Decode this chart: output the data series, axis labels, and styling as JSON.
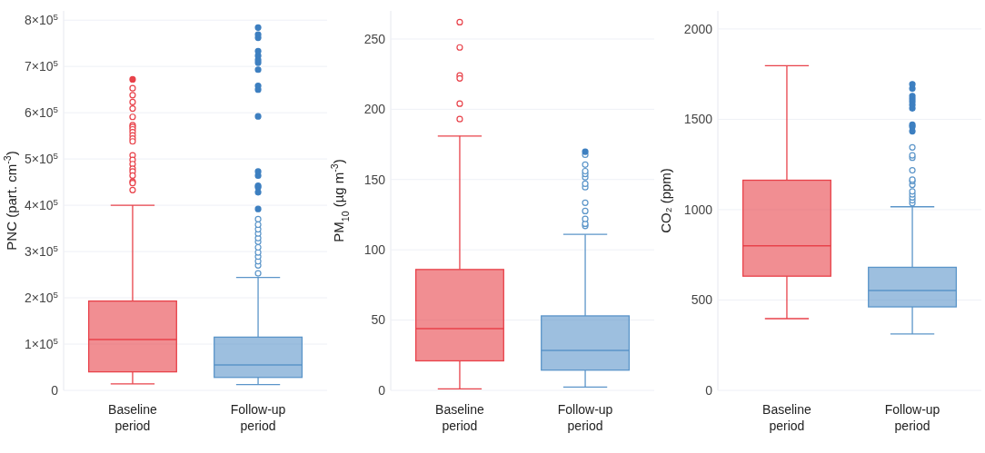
{
  "chart_data": [
    {
      "type": "box",
      "ylabel": "PNC (part. cm$^{-3}$)",
      "categories": [
        "Baseline period",
        "Follow-up period"
      ],
      "colors": [
        "#e8424a",
        "#5b95c9"
      ],
      "grid": "y",
      "marker": "circle",
      "ylim": [
        0,
        820000
      ],
      "yticks": [
        0,
        {
          "value": 100000,
          "label": "1×10$^{5}$"
        },
        {
          "value": 200000,
          "label": "2×10$^{5}$"
        },
        {
          "value": 300000,
          "label": "3×10$^{5}$"
        },
        {
          "value": 400000,
          "label": "4×10$^{5}$"
        },
        {
          "value": 500000,
          "label": "5×10$^{5}$"
        },
        {
          "value": 600000,
          "label": "6×10$^{5}$"
        },
        {
          "value": 700000,
          "label": "7×10$^{5}$"
        },
        {
          "value": 800000,
          "label": "8×10$^{5}$"
        }
      ],
      "boxes": [
        {
          "low": 14000,
          "q1": 40000,
          "median": 110000,
          "q3": 193000,
          "high": 400000,
          "outliers": [
            653000,
            638000,
            623000,
            609000,
            591000,
            573000,
            569000,
            564000,
            558000,
            551000,
            544000,
            538000,
            508000,
            498000,
            489000,
            479000,
            473000,
            464000,
            451000,
            448000,
            433000
          ]
        },
        {
          "low": 12500,
          "q1": 28000,
          "median": 55000,
          "q3": 115000,
          "high": 244000,
          "outliers": [
            253000,
            270000,
            279000,
            289000,
            298000,
            309000,
            321000,
            329000,
            339000,
            348000,
            358000,
            370000
          ]
        }
      ],
      "series": [
        {
          "type": "scatter",
          "color": "#e8424a",
          "x": [
            "Baseline period"
          ],
          "values": [
            672000
          ]
        },
        {
          "type": "scatter",
          "color": "#3d7fc0",
          "x": [
            "Follow-up period",
            "Follow-up period",
            "Follow-up period",
            "Follow-up period",
            "Follow-up period",
            "Follow-up period",
            "Follow-up period",
            "Follow-up period",
            "Follow-up period",
            "Follow-up period",
            "Follow-up period",
            "Follow-up period",
            "Follow-up period",
            "Follow-up period",
            "Follow-up period",
            "Follow-up period",
            "Follow-up period"
          ],
          "values": [
            392000,
            428000,
            439000,
            442000,
            464000,
            473000,
            592000,
            650000,
            658000,
            693000,
            708000,
            714000,
            723000,
            733000,
            762000,
            769000,
            784000
          ]
        }
      ]
    },
    {
      "type": "box",
      "ylabel": "PM$_{10}$ (µg m$^{-3}$)",
      "categories": [
        "Baseline period",
        "Follow-up period"
      ],
      "colors": [
        "#e8424a",
        "#5b95c9"
      ],
      "grid": "y",
      "marker": "circle",
      "ylim": [
        0,
        270
      ],
      "yticks": [
        0,
        50,
        100,
        150,
        200,
        250
      ],
      "boxes": [
        {
          "low": 1,
          "q1": 21,
          "median": 44,
          "q3": 86,
          "high": 181,
          "outliers": [
            262,
            244,
            224,
            222,
            204,
            193
          ]
        },
        {
          "low": 2.4,
          "q1": 14.4,
          "median": 28.5,
          "q3": 53,
          "high": 111,
          "outliers": [
            117,
            118.6,
            122,
            127.6,
            133.5,
            144.6,
            147,
            151.7,
            154,
            156,
            160.6,
            167.7
          ]
        }
      ],
      "series": [
        {
          "type": "scatter",
          "color": "#3d7fc0",
          "x": [
            "Follow-up period"
          ],
          "values": [
            169.8
          ]
        }
      ]
    },
    {
      "type": "box",
      "ylabel": "CO₂ (ppm)",
      "categories": [
        "Baseline period",
        "Follow-up period"
      ],
      "colors": [
        "#e8424a",
        "#5b95c9"
      ],
      "grid": "y",
      "marker": "circle",
      "ylim": [
        0,
        2100
      ],
      "yticks": [
        0,
        500,
        1000,
        1500,
        2000
      ],
      "boxes": [
        {
          "low": 397,
          "q1": 632,
          "median": 800,
          "q3": 1163,
          "high": 1797
        },
        {
          "low": 312,
          "q1": 462,
          "median": 553,
          "q3": 681,
          "high": 1016,
          "outliers": [
            1036,
            1052,
            1068,
            1085,
            1101,
            1138,
            1158,
            1166,
            1218,
            1288,
            1301,
            1345
          ]
        }
      ],
      "series": [
        {
          "type": "scatter",
          "color": "#3d7fc0",
          "x": [
            "Follow-up period",
            "Follow-up period",
            "Follow-up period",
            "Follow-up period",
            "Follow-up period",
            "Follow-up period",
            "Follow-up period",
            "Follow-up period",
            "Follow-up period",
            "Follow-up period"
          ],
          "values": [
            1434,
            1459,
            1470,
            1561,
            1580,
            1597,
            1613,
            1629,
            1670,
            1694
          ]
        }
      ]
    }
  ]
}
